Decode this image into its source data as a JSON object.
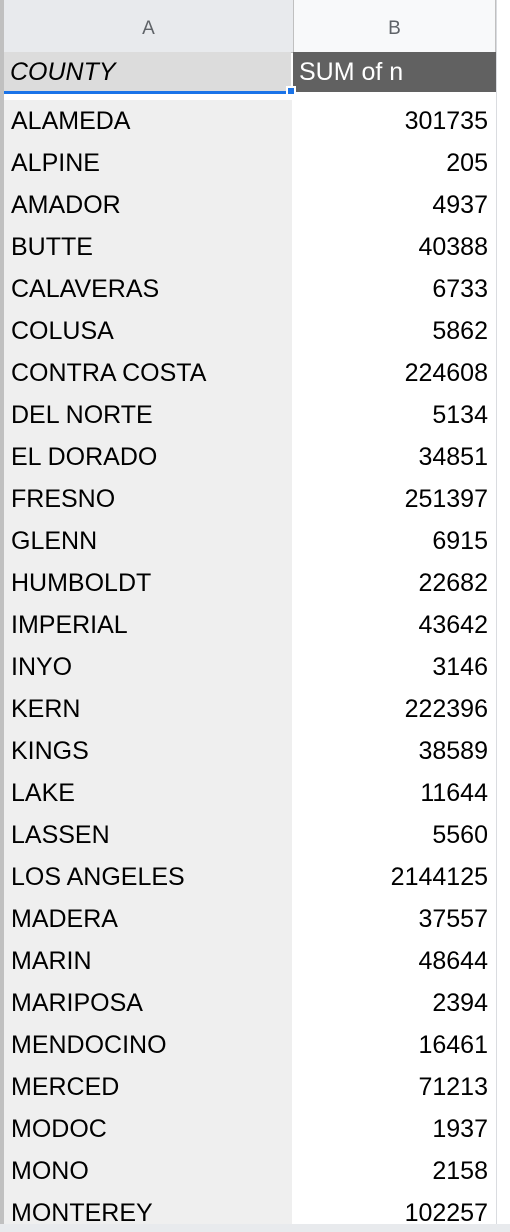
{
  "columns": {
    "a_label": "A",
    "b_label": "B"
  },
  "header": {
    "county_label": "COUNTY",
    "sum_label": "SUM of n"
  },
  "rows": [
    {
      "county": "ALAMEDA",
      "sum": "301735"
    },
    {
      "county": "ALPINE",
      "sum": "205"
    },
    {
      "county": "AMADOR",
      "sum": "4937"
    },
    {
      "county": "BUTTE",
      "sum": "40388"
    },
    {
      "county": "CALAVERAS",
      "sum": "6733"
    },
    {
      "county": "COLUSA",
      "sum": "5862"
    },
    {
      "county": "CONTRA COSTA",
      "sum": "224608"
    },
    {
      "county": "DEL NORTE",
      "sum": "5134"
    },
    {
      "county": "EL DORADO",
      "sum": "34851"
    },
    {
      "county": "FRESNO",
      "sum": "251397"
    },
    {
      "county": "GLENN",
      "sum": "6915"
    },
    {
      "county": "HUMBOLDT",
      "sum": "22682"
    },
    {
      "county": "IMPERIAL",
      "sum": "43642"
    },
    {
      "county": "INYO",
      "sum": "3146"
    },
    {
      "county": "KERN",
      "sum": "222396"
    },
    {
      "county": "KINGS",
      "sum": "38589"
    },
    {
      "county": "LAKE",
      "sum": "11644"
    },
    {
      "county": "LASSEN",
      "sum": "5560"
    },
    {
      "county": "LOS ANGELES",
      "sum": "2144125"
    },
    {
      "county": "MADERA",
      "sum": "37557"
    },
    {
      "county": "MARIN",
      "sum": "48644"
    },
    {
      "county": "MARIPOSA",
      "sum": "2394"
    },
    {
      "county": "MENDOCINO",
      "sum": "16461"
    },
    {
      "county": "MERCED",
      "sum": "71213"
    },
    {
      "county": "MODOC",
      "sum": "1937"
    },
    {
      "county": "MONO",
      "sum": "2158"
    },
    {
      "county": "MONTEREY",
      "sum": "102257"
    }
  ]
}
